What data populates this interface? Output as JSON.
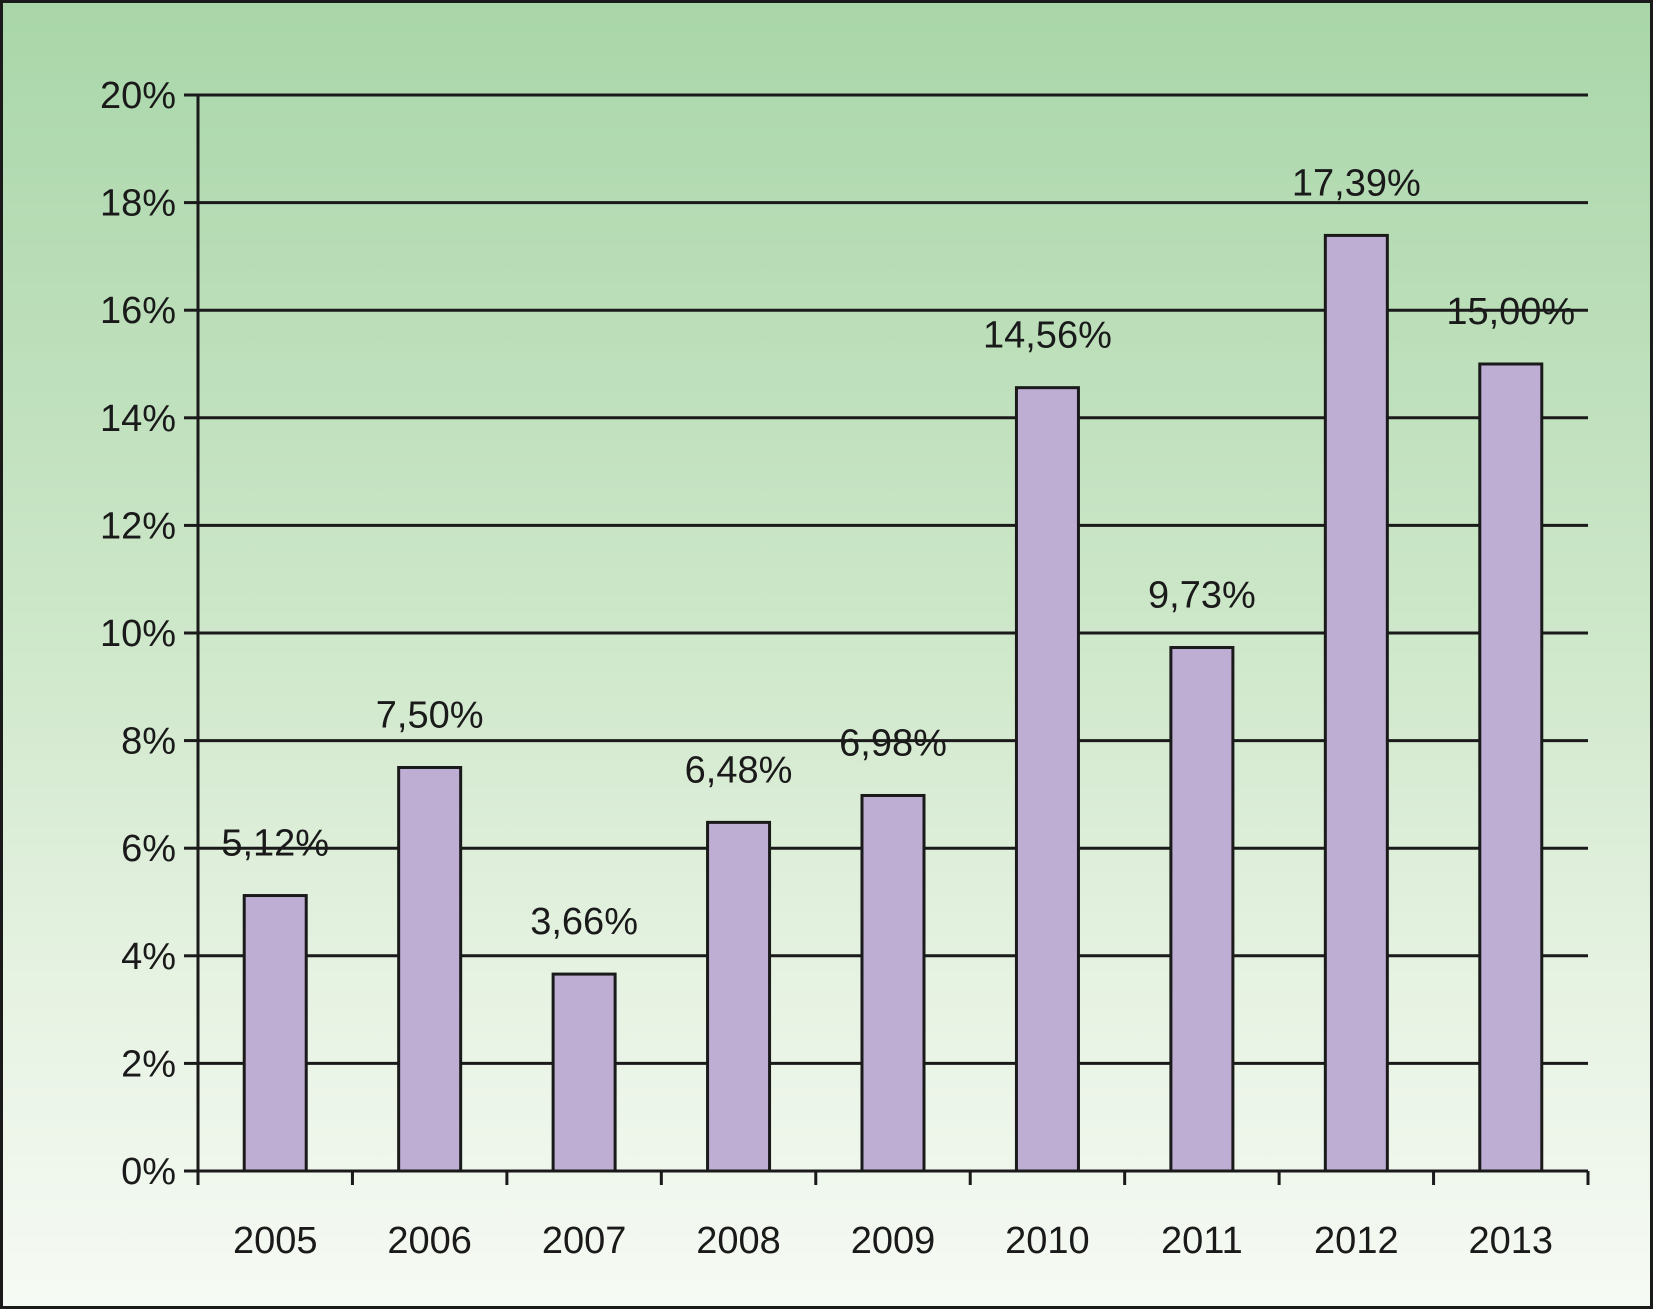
{
  "chart_data": {
    "type": "bar",
    "categories": [
      "2005",
      "2006",
      "2007",
      "2008",
      "2009",
      "2010",
      "2011",
      "2012",
      "2013"
    ],
    "values": [
      5.12,
      7.5,
      3.66,
      6.48,
      6.98,
      14.56,
      9.73,
      17.39,
      15.0
    ],
    "data_labels": [
      "5,12%",
      "7,50%",
      "3,66%",
      "6,48%",
      "6,98%",
      "14,56%",
      "9,73%",
      "17,39%",
      "15,00%"
    ],
    "y_ticks": [
      0,
      2,
      4,
      6,
      8,
      10,
      12,
      14,
      16,
      18,
      20
    ],
    "y_tick_labels": [
      "0%",
      "2%",
      "4%",
      "6%",
      "8%",
      "10%",
      "12%",
      "14%",
      "16%",
      "18%",
      "20%"
    ],
    "ylim": [
      0,
      20
    ],
    "grid": true,
    "colors": {
      "bar_fill": "#bfaed4",
      "bar_stroke": "#1a1a1a",
      "grid": "#1a1a1a",
      "background_top": "#a9d6a9",
      "background_bottom": "#f6faf4"
    }
  }
}
